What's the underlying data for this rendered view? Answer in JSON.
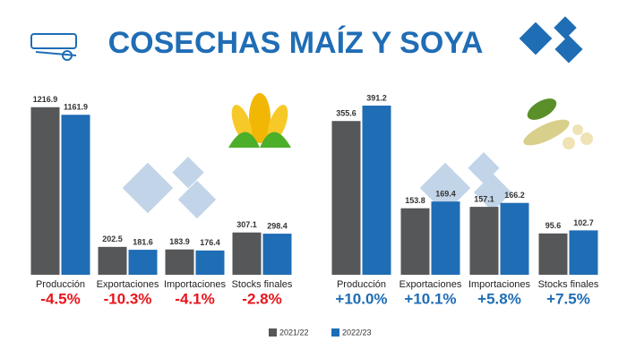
{
  "title": "COSECHAS MAÍZ Y SOYA",
  "chart_data": [
    {
      "type": "bar",
      "categories": [
        "Producción",
        "Exportaciones",
        "Importaciones",
        "Stocks finales"
      ],
      "series": [
        {
          "name": "2021/22",
          "color": "#555759",
          "values": [
            1216.9,
            202.5,
            183.9,
            307.1
          ]
        },
        {
          "name": "2022/23",
          "color": "#1f6db5",
          "values": [
            1161.9,
            181.6,
            176.4,
            298.4
          ]
        }
      ],
      "ylim": [
        0,
        1300
      ],
      "annotations": [
        "-4.5%",
        "-10.3%",
        "-4.1%",
        "-2.8%"
      ],
      "annotation_color": "#e8141b"
    },
    {
      "type": "bar",
      "categories": [
        "Producción",
        "Exportaciones",
        "Importaciones",
        "Stocks finales"
      ],
      "series": [
        {
          "color": "#555759",
          "values": [
            355.6,
            153.8,
            157.1,
            95.6
          ]
        },
        {
          "color": "#1f6db5",
          "values": [
            391.2,
            169.4,
            166.2,
            102.7
          ]
        }
      ],
      "ylim": [
        0,
        414
      ],
      "annotations": [
        "+10.0%",
        "+10.1%",
        "+5.8%",
        "+7.5%"
      ],
      "annotation_color": "#1f6db5"
    }
  ]
}
